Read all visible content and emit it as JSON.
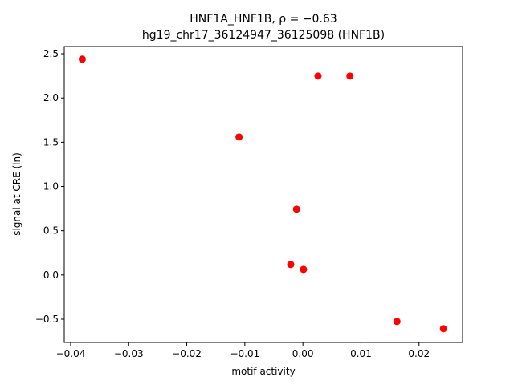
{
  "chart_data": {
    "type": "scatter",
    "title": "HNF1A_HNF1B, ρ = −0.63",
    "subtitle": "hg19_chr17_36124947_36125098 (HNF1B)",
    "x_label": "motif activity",
    "y_label": "signal at CRE (ln)",
    "color": "#ff0000",
    "series": [
      {
        "x": [
          -0.038,
          0.0026,
          0.0081,
          -0.011,
          -0.0011,
          -0.0021,
          0.0001,
          0.0162,
          0.0242
        ],
        "values": [
          2.439,
          2.248,
          2.248,
          1.559,
          0.743,
          0.118,
          0.063,
          -0.526,
          -0.607
        ]
      }
    ],
    "xlim": [
      -0.0411,
      0.0275
    ],
    "xticks": [
      {
        "value": -0.04,
        "label": "−0.04"
      },
      {
        "value": -0.03,
        "label": "−0.03"
      },
      {
        "value": -0.02,
        "label": "−0.02"
      },
      {
        "value": -0.01,
        "label": "−0.01"
      },
      {
        "value": 0,
        "label": "0.00"
      },
      {
        "value": 0.01,
        "label": "0.01"
      },
      {
        "value": 0.02,
        "label": "0.02"
      }
    ],
    "ylim": [
      -0.763,
      2.582
    ],
    "yticks": [
      {
        "value": -0.5,
        "label": "−0.5"
      },
      {
        "value": 0,
        "label": "0.0"
      },
      0.5,
      {
        "value": 1,
        "label": "1.0"
      },
      1.5,
      {
        "value": 2,
        "label": "2.0"
      },
      2.5
    ],
    "grid": false
  }
}
